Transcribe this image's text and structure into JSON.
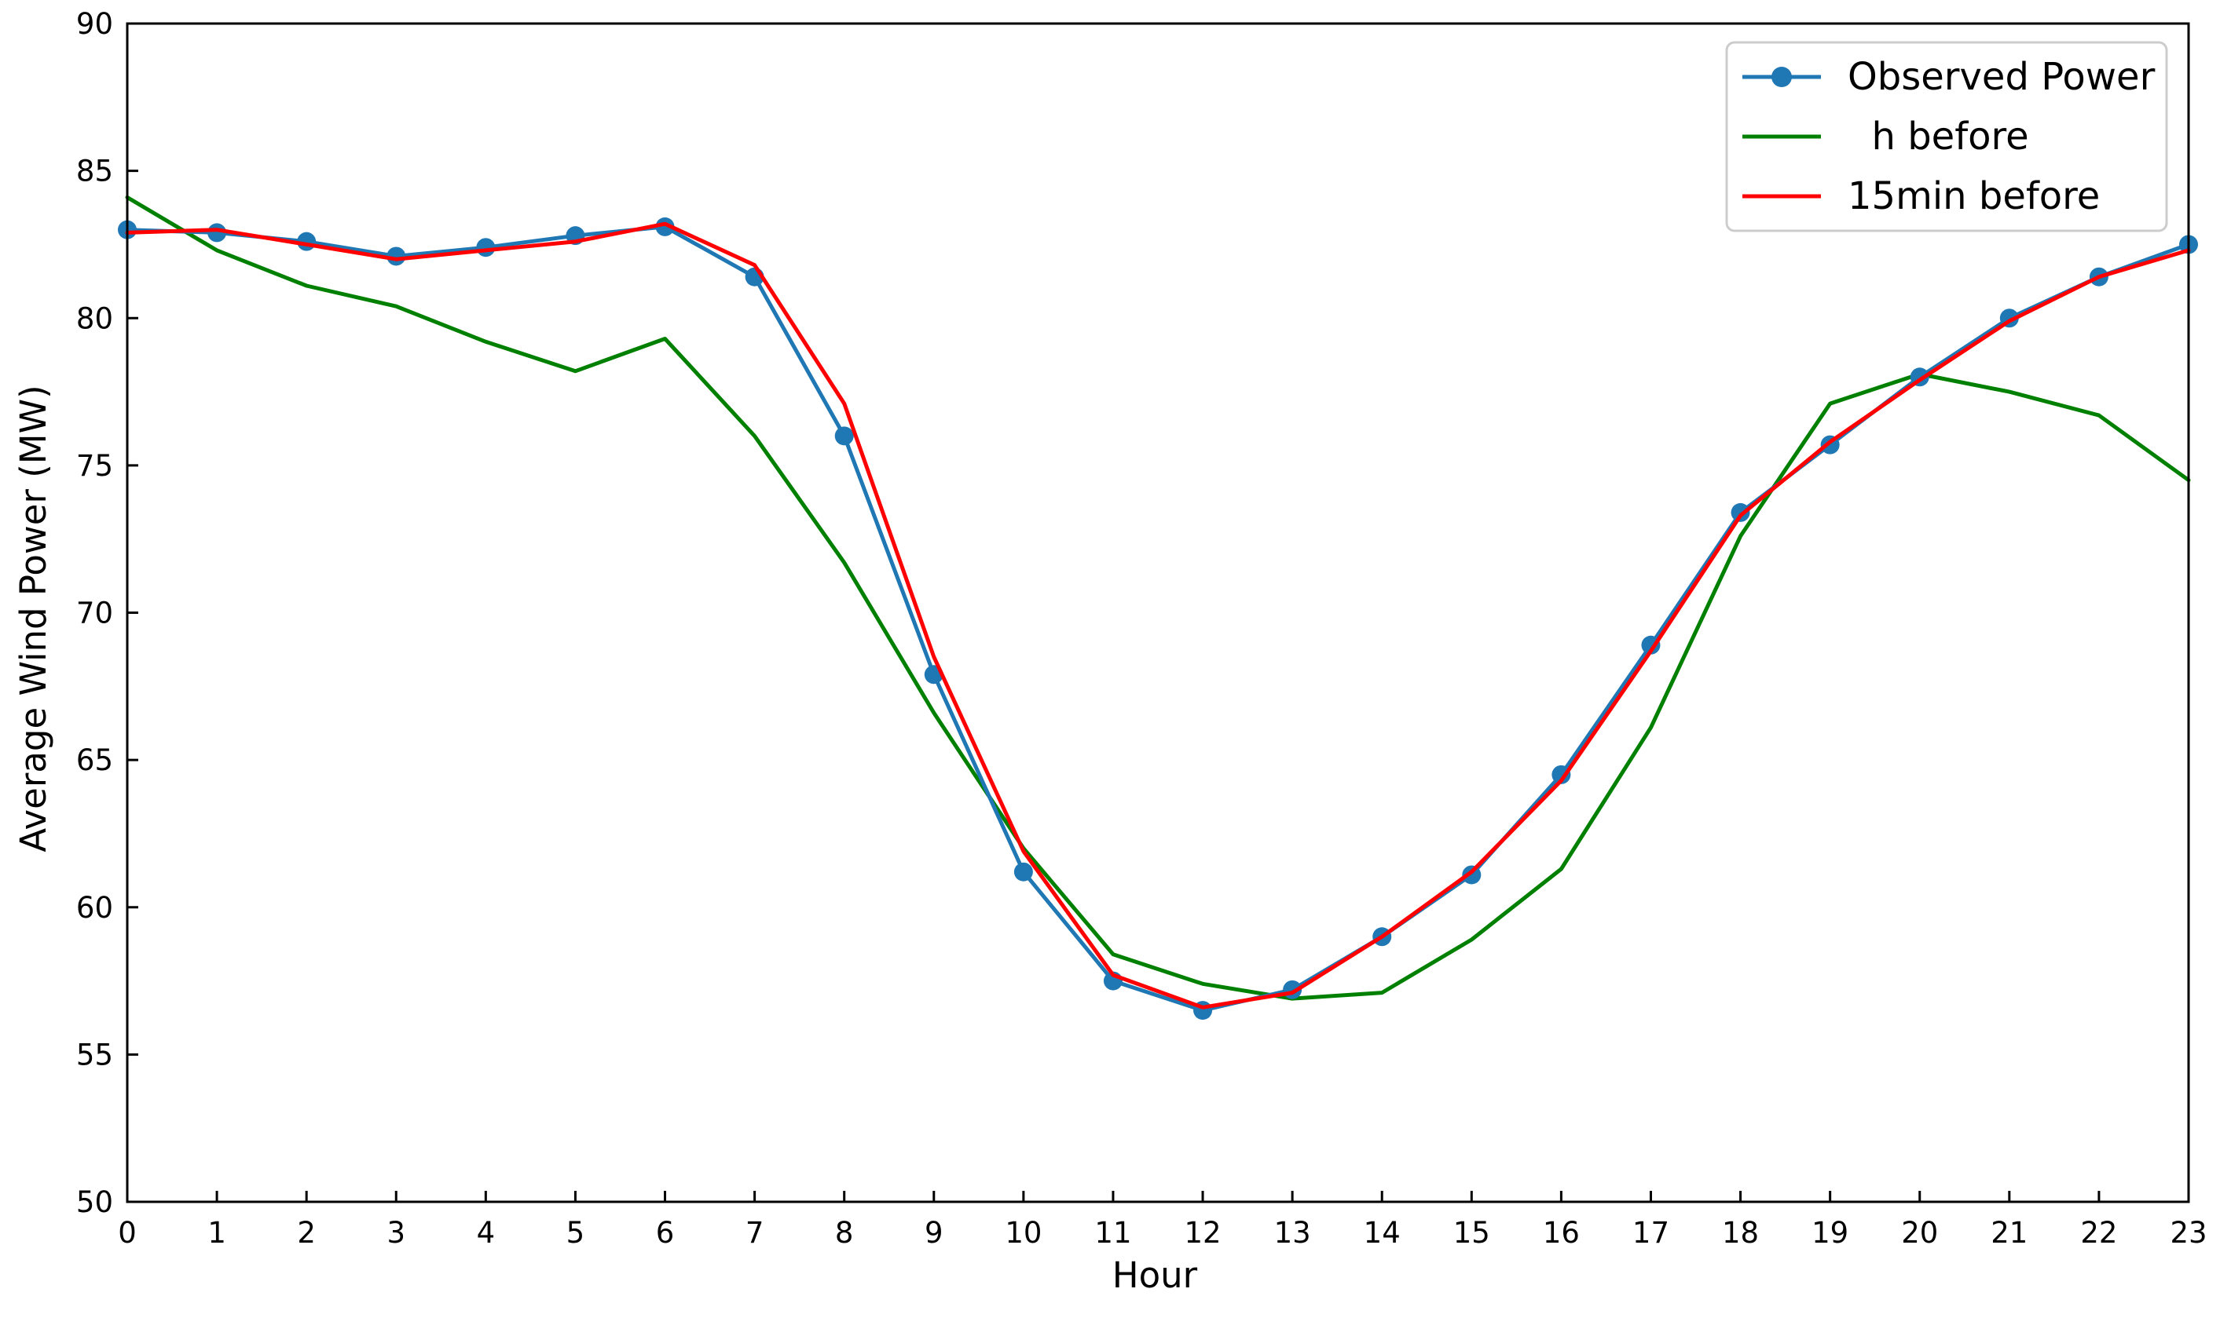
{
  "chart_data": {
    "type": "line",
    "title": "",
    "xlabel": "Hour",
    "ylabel": "Average Wind Power (MW)",
    "x": [
      0,
      1,
      2,
      3,
      4,
      5,
      6,
      7,
      8,
      9,
      10,
      11,
      12,
      13,
      14,
      15,
      16,
      17,
      18,
      19,
      20,
      21,
      22,
      23
    ],
    "xlim": [
      0,
      23
    ],
    "ylim": [
      50,
      90
    ],
    "xticks": [
      0,
      1,
      2,
      3,
      4,
      5,
      6,
      7,
      8,
      9,
      10,
      11,
      12,
      13,
      14,
      15,
      16,
      17,
      18,
      19,
      20,
      21,
      22,
      23
    ],
    "yticks": [
      50,
      55,
      60,
      65,
      70,
      75,
      80,
      85,
      90
    ],
    "grid": false,
    "legend_position": "top-right",
    "series": [
      {
        "name": "Observed Power",
        "color": "#1f77b4",
        "marker": "circle",
        "values": [
          83.0,
          82.9,
          82.6,
          82.1,
          82.4,
          82.8,
          83.1,
          81.4,
          76.0,
          67.9,
          61.2,
          57.5,
          56.5,
          57.2,
          59.0,
          61.1,
          64.5,
          68.9,
          73.4,
          75.7,
          78.0,
          80.0,
          81.4,
          82.5
        ]
      },
      {
        "name": "  h before",
        "color": "#008000",
        "marker": "none",
        "values": [
          84.1,
          82.3,
          81.1,
          80.4,
          79.2,
          78.2,
          79.3,
          76.0,
          71.7,
          66.6,
          62.0,
          58.4,
          57.4,
          56.9,
          57.1,
          58.9,
          61.3,
          66.1,
          72.6,
          77.1,
          78.1,
          77.5,
          76.7,
          74.5
        ]
      },
      {
        "name": "15min before",
        "color": "#ff0000",
        "marker": "none",
        "values": [
          82.9,
          83.0,
          82.5,
          82.0,
          82.3,
          82.6,
          83.2,
          81.8,
          77.1,
          68.5,
          61.9,
          57.7,
          56.6,
          57.1,
          59.0,
          61.2,
          64.3,
          68.7,
          73.3,
          75.8,
          77.9,
          79.9,
          81.4,
          82.3
        ]
      }
    ]
  }
}
